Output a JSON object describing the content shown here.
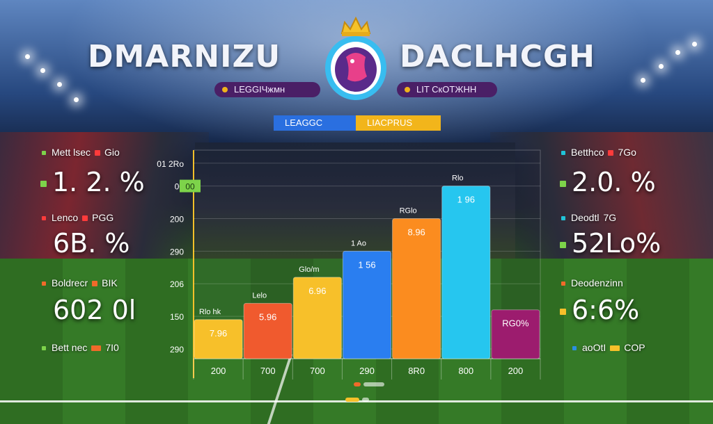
{
  "titles": {
    "left": "DMARNIZU",
    "right": "DACLHCGH"
  },
  "pills": {
    "left": "LEGGIЧжмн",
    "right": "LIT СкОТЖНН"
  },
  "tabs": [
    {
      "label": "LEAGGC",
      "color": "#2a6fe0"
    },
    {
      "label": "LIACPRUS",
      "color": "#f2b51b"
    }
  ],
  "left_stats": [
    {
      "label": "Mett lsec",
      "tail": "Gio",
      "value": "1. 2. %",
      "color": "#7dd34a"
    },
    {
      "label": "Lenco",
      "tail": "PGG",
      "value": "6B. %",
      "color": "#ff3b3b"
    },
    {
      "label": "Boldrecr",
      "tail": "BIK",
      "value": "602 0l",
      "color": "#f06a2a"
    },
    {
      "label": "Bett nec",
      "tail": "7I0",
      "value": "",
      "color": "#7dd34a"
    }
  ],
  "right_stats": [
    {
      "label": "Betthco",
      "tail": "7Go",
      "value": "2.0. %",
      "color": "#20c4d8"
    },
    {
      "label": "Deodtl",
      "tail": "7G",
      "value": "52Lo%",
      "color": "#20c4d8"
    },
    {
      "label": "Deodenzinn",
      "tail": "",
      "value": "6:6%",
      "color": "#f06a2a"
    },
    {
      "label": "aoOtI",
      "tail": "COP",
      "value": "",
      "color": "#2a8fe0"
    }
  ],
  "chart_data": {
    "type": "bar",
    "y_ticks": [
      "01 2Ro",
      "00",
      "200",
      "290",
      "206",
      "150",
      "290"
    ],
    "y_tick_values": [
      600,
      530,
      430,
      330,
      230,
      130,
      30
    ],
    "ylim": [
      0,
      640
    ],
    "legend_badge": "00",
    "categories": [
      "200",
      "700",
      "700",
      "290",
      "8R0",
      "800",
      "200"
    ],
    "values": [
      120,
      170,
      250,
      330,
      430,
      530,
      150
    ],
    "bar_labels": [
      "7.96",
      "5.96",
      "6.96",
      "1 56",
      "8.96",
      "1 96",
      "RG0%"
    ],
    "top_labels": [
      "Rlo hk",
      "Lelo",
      "Glo/m",
      "1 Ao",
      "RGlo",
      "Rlo",
      ""
    ],
    "colors": [
      "#f7c02a",
      "#f05a2e",
      "#f7c02a",
      "#2a7ef0",
      "#fb8c1f",
      "#26c6ef",
      "#9c1c6e"
    ]
  },
  "footer_dots": [
    "#f06a2a",
    "#f7c02a"
  ]
}
